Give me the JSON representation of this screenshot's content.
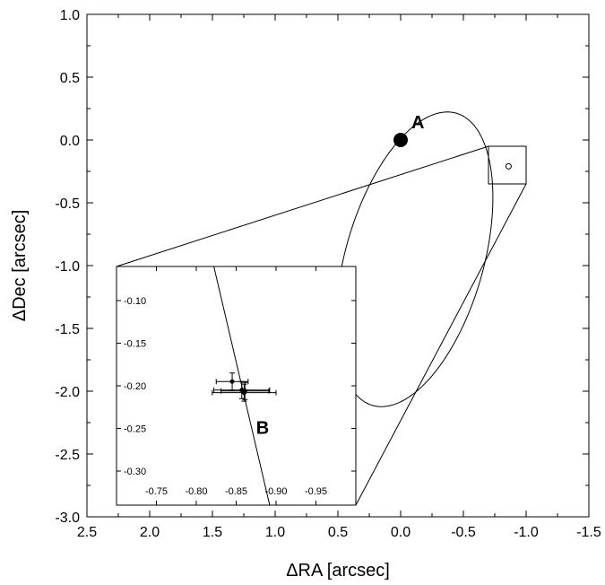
{
  "chart_data": {
    "type": "scatter",
    "xlabel": "ΔRA [arcsec]",
    "ylabel": "ΔDec [arcsec]",
    "xlim": [
      2.5,
      -1.5
    ],
    "ylim": [
      -3.0,
      1.0
    ],
    "xticks": [
      "2.5",
      "2.0",
      "1.5",
      "1.0",
      "0.5",
      "0.0",
      "-0.5",
      "-1.0",
      "-1.5"
    ],
    "yticks": [
      "1.0",
      "0.5",
      "0.0",
      "-0.5",
      "-1.0",
      "-1.5",
      "-2.0",
      "-2.5",
      "-3.0"
    ],
    "grid": false,
    "points": [
      {
        "label": "A",
        "x": 0.0,
        "y": 0.0
      },
      {
        "label": "B",
        "x": -0.86,
        "y": -0.21
      }
    ],
    "orbit_ellipse": {
      "center_x": -0.11,
      "center_y": -0.95,
      "semi_axis_a": 1.21,
      "semi_axis_b": 0.55,
      "rotation_deg": 106
    },
    "zoom_box": {
      "x_range": [
        -0.7,
        -1.0
      ],
      "y_range": [
        -0.05,
        -0.35
      ]
    },
    "inset": {
      "xlim": [
        -0.7,
        -1.0
      ],
      "ylim": [
        -0.34,
        -0.06
      ],
      "xticks": [
        "-0.75",
        "-0.80",
        "-0.85",
        "-0.90",
        "-0.95"
      ],
      "yticks": [
        "-0.10",
        "-0.15",
        "-0.20",
        "-0.25",
        "-0.30"
      ],
      "label": "B",
      "measurements": [
        {
          "x": -0.845,
          "y": -0.195,
          "xerr": 0.02,
          "yerr": 0.01
        },
        {
          "x": -0.857,
          "y": -0.205,
          "xerr": 0.035,
          "yerr": 0.01
        },
        {
          "x": -0.86,
          "y": -0.208,
          "xerr": 0.04,
          "yerr": 0.01
        },
        {
          "x": -0.861,
          "y": -0.206,
          "xerr": 0.03,
          "yerr": 0.01
        }
      ],
      "orbit_line": [
        {
          "x": -0.822,
          "y": -0.06
        },
        {
          "x": -0.892,
          "y": -0.34
        }
      ]
    }
  }
}
